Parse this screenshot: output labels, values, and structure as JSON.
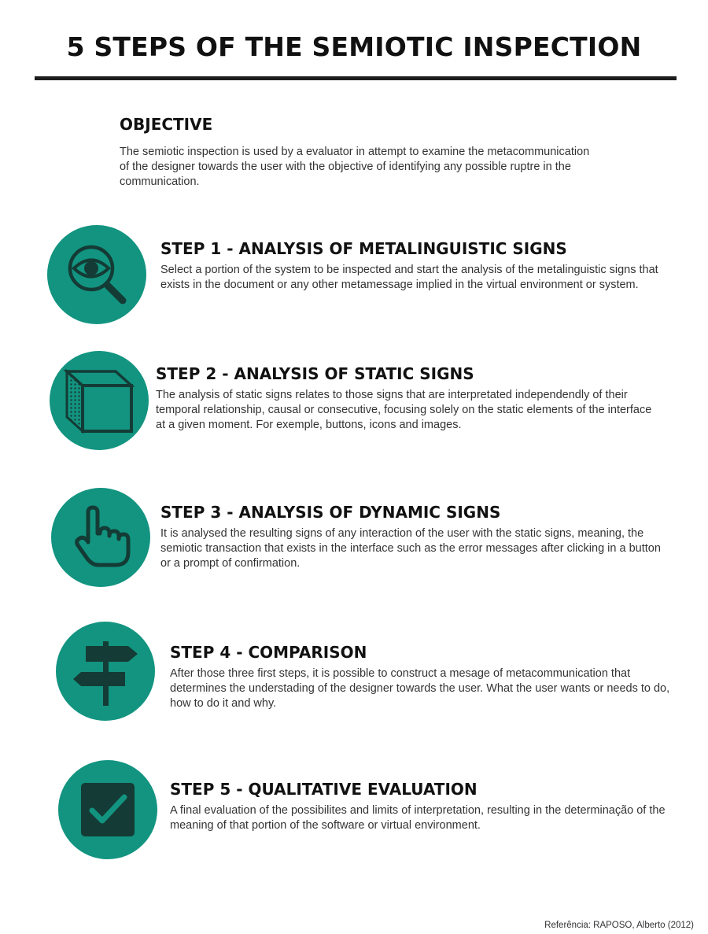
{
  "title": "5 STEPS OF THE SEMIOTIC INSPECTION",
  "objective": {
    "heading": "OBJECTIVE",
    "text": "The semiotic inspection is used by a evaluator in attempt to examine the metacommunication of the designer towards the user with the objective of identifying any possible ruptre in the communication."
  },
  "steps": [
    {
      "heading": "STEP 1  - ANALYSIS OF METALINGUISTIC SIGNS",
      "text": "Select a portion of the system to be inspected and start the analysis of the metalinguistic signs that exists in the document or any other metamessage implied in the virtual environment or system.",
      "icon": "eye-magnifier-icon"
    },
    {
      "heading": "STEP 2 - ANALYSIS OF STATIC SIGNS",
      "text": "The analysis of static signs relates to those signs that are interpretated independendly of their temporal relationship, causal or consecutive, focusing solely on the static elements of the interface at a given moment. For exemple, buttons, icons and images.",
      "icon": "cube-icon"
    },
    {
      "heading": "STEP 3 - ANALYSIS OF DYNAMIC SIGNS",
      "text": " It is analysed the resulting signs of any interaction of the user with the static signs, meaning, the semiotic transaction that exists in the interface such as the error messages after clicking in a button or a prompt of confirmation.",
      "icon": "pointing-hand-icon"
    },
    {
      "heading": "STEP 4 - COMPARISON",
      "text": "After those three first steps, it is possible to construct a mesage of metacommunication that determines the understading of the designer towards the user. What the user wants or needs to do, how to do  it and why.",
      "icon": "signpost-icon"
    },
    {
      "heading": "STEP 5 - QUALITATIVE EVALUATION",
      "text": "A final evaluation of the possibilites and limits of interpretation, resulting in the determinação of the meaning of that portion of the software or virtual environment.",
      "icon": "checkbox-icon"
    }
  ],
  "reference": "Referência: RAPOSO, Alberto (2012)",
  "colors": {
    "accent": "#129480",
    "icon_dark": "#143b35",
    "text": "#333333"
  }
}
